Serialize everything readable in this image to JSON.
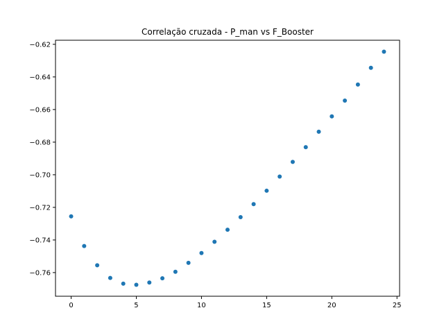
{
  "chart_data": {
    "type": "scatter",
    "title": "Correlação cruzada - P_man vs F_Booster",
    "xlabel": "",
    "ylabel": "",
    "xlim": [
      -1.2,
      25.2
    ],
    "ylim": [
      -0.7745,
      -0.6175
    ],
    "xticks": [
      0,
      5,
      10,
      15,
      20,
      25
    ],
    "yticks": [
      -0.76,
      -0.74,
      -0.72,
      -0.7,
      -0.68,
      -0.66,
      -0.64,
      -0.62
    ],
    "x": [
      0,
      1,
      2,
      3,
      4,
      5,
      6,
      7,
      8,
      9,
      10,
      11,
      12,
      13,
      14,
      15,
      16,
      17,
      18,
      19,
      20,
      21,
      22,
      23,
      24
    ],
    "y": [
      -0.7255,
      -0.7437,
      -0.7555,
      -0.7633,
      -0.7668,
      -0.7675,
      -0.7661,
      -0.7635,
      -0.7595,
      -0.754,
      -0.748,
      -0.7411,
      -0.7337,
      -0.726,
      -0.718,
      -0.7098,
      -0.7011,
      -0.6921,
      -0.6831,
      -0.6736,
      -0.6642,
      -0.6545,
      -0.6447,
      -0.6344,
      -0.6245
    ],
    "marker_color": "#1f77b4",
    "grid": false
  }
}
